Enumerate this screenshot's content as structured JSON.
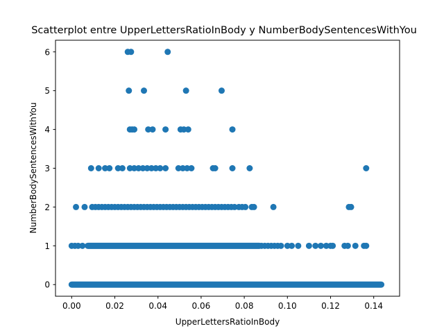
{
  "chart_data": {
    "type": "scatter",
    "title": "Scatterplot entre UpperLettersRatioInBody y NumberBodySentencesWithYou",
    "xlabel": "UpperLettersRatioInBody",
    "ylabel": "NumberBodySentencesWithYou",
    "xlim": [
      -0.0075,
      0.152
    ],
    "ylim": [
      -0.3,
      6.3
    ],
    "xticks": [
      0.0,
      0.02,
      0.04,
      0.06,
      0.08,
      0.1,
      0.12,
      0.14
    ],
    "xtick_labels": [
      "0.00",
      "0.02",
      "0.04",
      "0.06",
      "0.08",
      "0.10",
      "0.12",
      "0.14"
    ],
    "yticks": [
      0,
      1,
      2,
      3,
      4,
      5,
      6
    ],
    "ytick_labels": [
      "0",
      "1",
      "2",
      "3",
      "4",
      "5",
      "6"
    ],
    "grid": false,
    "marker_color": "#1f77b4",
    "series": [
      {
        "dense_bands": [
          {
            "y": 0,
            "x_range": [
              0.0,
              0.1435
            ]
          },
          {
            "y": 1,
            "x_range": [
              0.0075,
              0.087
            ]
          }
        ],
        "points": [
          {
            "x": 0.026,
            "y": 6
          },
          {
            "x": 0.0275,
            "y": 6
          },
          {
            "x": 0.0445,
            "y": 6
          },
          {
            "x": 0.0265,
            "y": 5
          },
          {
            "x": 0.0335,
            "y": 5
          },
          {
            "x": 0.053,
            "y": 5
          },
          {
            "x": 0.0695,
            "y": 5
          },
          {
            "x": 0.027,
            "y": 4
          },
          {
            "x": 0.028,
            "y": 4
          },
          {
            "x": 0.029,
            "y": 4
          },
          {
            "x": 0.0355,
            "y": 4
          },
          {
            "x": 0.0375,
            "y": 4
          },
          {
            "x": 0.0435,
            "y": 4
          },
          {
            "x": 0.0505,
            "y": 4
          },
          {
            "x": 0.052,
            "y": 4
          },
          {
            "x": 0.054,
            "y": 4
          },
          {
            "x": 0.0745,
            "y": 4
          },
          {
            "x": 0.009,
            "y": 3
          },
          {
            "x": 0.0125,
            "y": 3
          },
          {
            "x": 0.0155,
            "y": 3
          },
          {
            "x": 0.0175,
            "y": 3
          },
          {
            "x": 0.0215,
            "y": 3
          },
          {
            "x": 0.0235,
            "y": 3
          },
          {
            "x": 0.027,
            "y": 3
          },
          {
            "x": 0.029,
            "y": 3
          },
          {
            "x": 0.031,
            "y": 3
          },
          {
            "x": 0.033,
            "y": 3
          },
          {
            "x": 0.035,
            "y": 3
          },
          {
            "x": 0.037,
            "y": 3
          },
          {
            "x": 0.039,
            "y": 3
          },
          {
            "x": 0.041,
            "y": 3
          },
          {
            "x": 0.0435,
            "y": 3
          },
          {
            "x": 0.0495,
            "y": 3
          },
          {
            "x": 0.0515,
            "y": 3
          },
          {
            "x": 0.0535,
            "y": 3
          },
          {
            "x": 0.0555,
            "y": 3
          },
          {
            "x": 0.0655,
            "y": 3
          },
          {
            "x": 0.0665,
            "y": 3
          },
          {
            "x": 0.0745,
            "y": 3
          },
          {
            "x": 0.0825,
            "y": 3
          },
          {
            "x": 0.1365,
            "y": 3
          },
          {
            "x": 0.002,
            "y": 2
          },
          {
            "x": 0.006,
            "y": 2
          },
          {
            "x": 0.0095,
            "y": 2
          },
          {
            "x": 0.011,
            "y": 2
          },
          {
            "x": 0.0125,
            "y": 2
          },
          {
            "x": 0.014,
            "y": 2
          },
          {
            "x": 0.0155,
            "y": 2
          },
          {
            "x": 0.017,
            "y": 2
          },
          {
            "x": 0.0185,
            "y": 2
          },
          {
            "x": 0.02,
            "y": 2
          },
          {
            "x": 0.0215,
            "y": 2
          },
          {
            "x": 0.023,
            "y": 2
          },
          {
            "x": 0.0245,
            "y": 2
          },
          {
            "x": 0.026,
            "y": 2
          },
          {
            "x": 0.0275,
            "y": 2
          },
          {
            "x": 0.029,
            "y": 2
          },
          {
            "x": 0.0305,
            "y": 2
          },
          {
            "x": 0.032,
            "y": 2
          },
          {
            "x": 0.0335,
            "y": 2
          },
          {
            "x": 0.035,
            "y": 2
          },
          {
            "x": 0.0365,
            "y": 2
          },
          {
            "x": 0.038,
            "y": 2
          },
          {
            "x": 0.0395,
            "y": 2
          },
          {
            "x": 0.041,
            "y": 2
          },
          {
            "x": 0.0425,
            "y": 2
          },
          {
            "x": 0.044,
            "y": 2
          },
          {
            "x": 0.0455,
            "y": 2
          },
          {
            "x": 0.047,
            "y": 2
          },
          {
            "x": 0.0485,
            "y": 2
          },
          {
            "x": 0.05,
            "y": 2
          },
          {
            "x": 0.0515,
            "y": 2
          },
          {
            "x": 0.053,
            "y": 2
          },
          {
            "x": 0.0545,
            "y": 2
          },
          {
            "x": 0.056,
            "y": 2
          },
          {
            "x": 0.0575,
            "y": 2
          },
          {
            "x": 0.059,
            "y": 2
          },
          {
            "x": 0.0605,
            "y": 2
          },
          {
            "x": 0.062,
            "y": 2
          },
          {
            "x": 0.0635,
            "y": 2
          },
          {
            "x": 0.065,
            "y": 2
          },
          {
            "x": 0.0665,
            "y": 2
          },
          {
            "x": 0.068,
            "y": 2
          },
          {
            "x": 0.0695,
            "y": 2
          },
          {
            "x": 0.071,
            "y": 2
          },
          {
            "x": 0.0725,
            "y": 2
          },
          {
            "x": 0.074,
            "y": 2
          },
          {
            "x": 0.0755,
            "y": 2
          },
          {
            "x": 0.0775,
            "y": 2
          },
          {
            "x": 0.079,
            "y": 2
          },
          {
            "x": 0.0805,
            "y": 2
          },
          {
            "x": 0.0835,
            "y": 2
          },
          {
            "x": 0.0845,
            "y": 2
          },
          {
            "x": 0.0935,
            "y": 2
          },
          {
            "x": 0.1285,
            "y": 2
          },
          {
            "x": 0.1295,
            "y": 2
          },
          {
            "x": 0.0,
            "y": 1
          },
          {
            "x": 0.0015,
            "y": 1
          },
          {
            "x": 0.003,
            "y": 1
          },
          {
            "x": 0.005,
            "y": 1
          },
          {
            "x": 0.088,
            "y": 1
          },
          {
            "x": 0.0895,
            "y": 1
          },
          {
            "x": 0.091,
            "y": 1
          },
          {
            "x": 0.0925,
            "y": 1
          },
          {
            "x": 0.094,
            "y": 1
          },
          {
            "x": 0.0955,
            "y": 1
          },
          {
            "x": 0.097,
            "y": 1
          },
          {
            "x": 0.1,
            "y": 1
          },
          {
            "x": 0.102,
            "y": 1
          },
          {
            "x": 0.105,
            "y": 1
          },
          {
            "x": 0.11,
            "y": 1
          },
          {
            "x": 0.113,
            "y": 1
          },
          {
            "x": 0.1155,
            "y": 1
          },
          {
            "x": 0.118,
            "y": 1
          },
          {
            "x": 0.12,
            "y": 1
          },
          {
            "x": 0.121,
            "y": 1
          },
          {
            "x": 0.1265,
            "y": 1
          },
          {
            "x": 0.128,
            "y": 1
          },
          {
            "x": 0.1315,
            "y": 1
          },
          {
            "x": 0.1355,
            "y": 1
          },
          {
            "x": 0.1365,
            "y": 1
          }
        ]
      }
    ]
  }
}
